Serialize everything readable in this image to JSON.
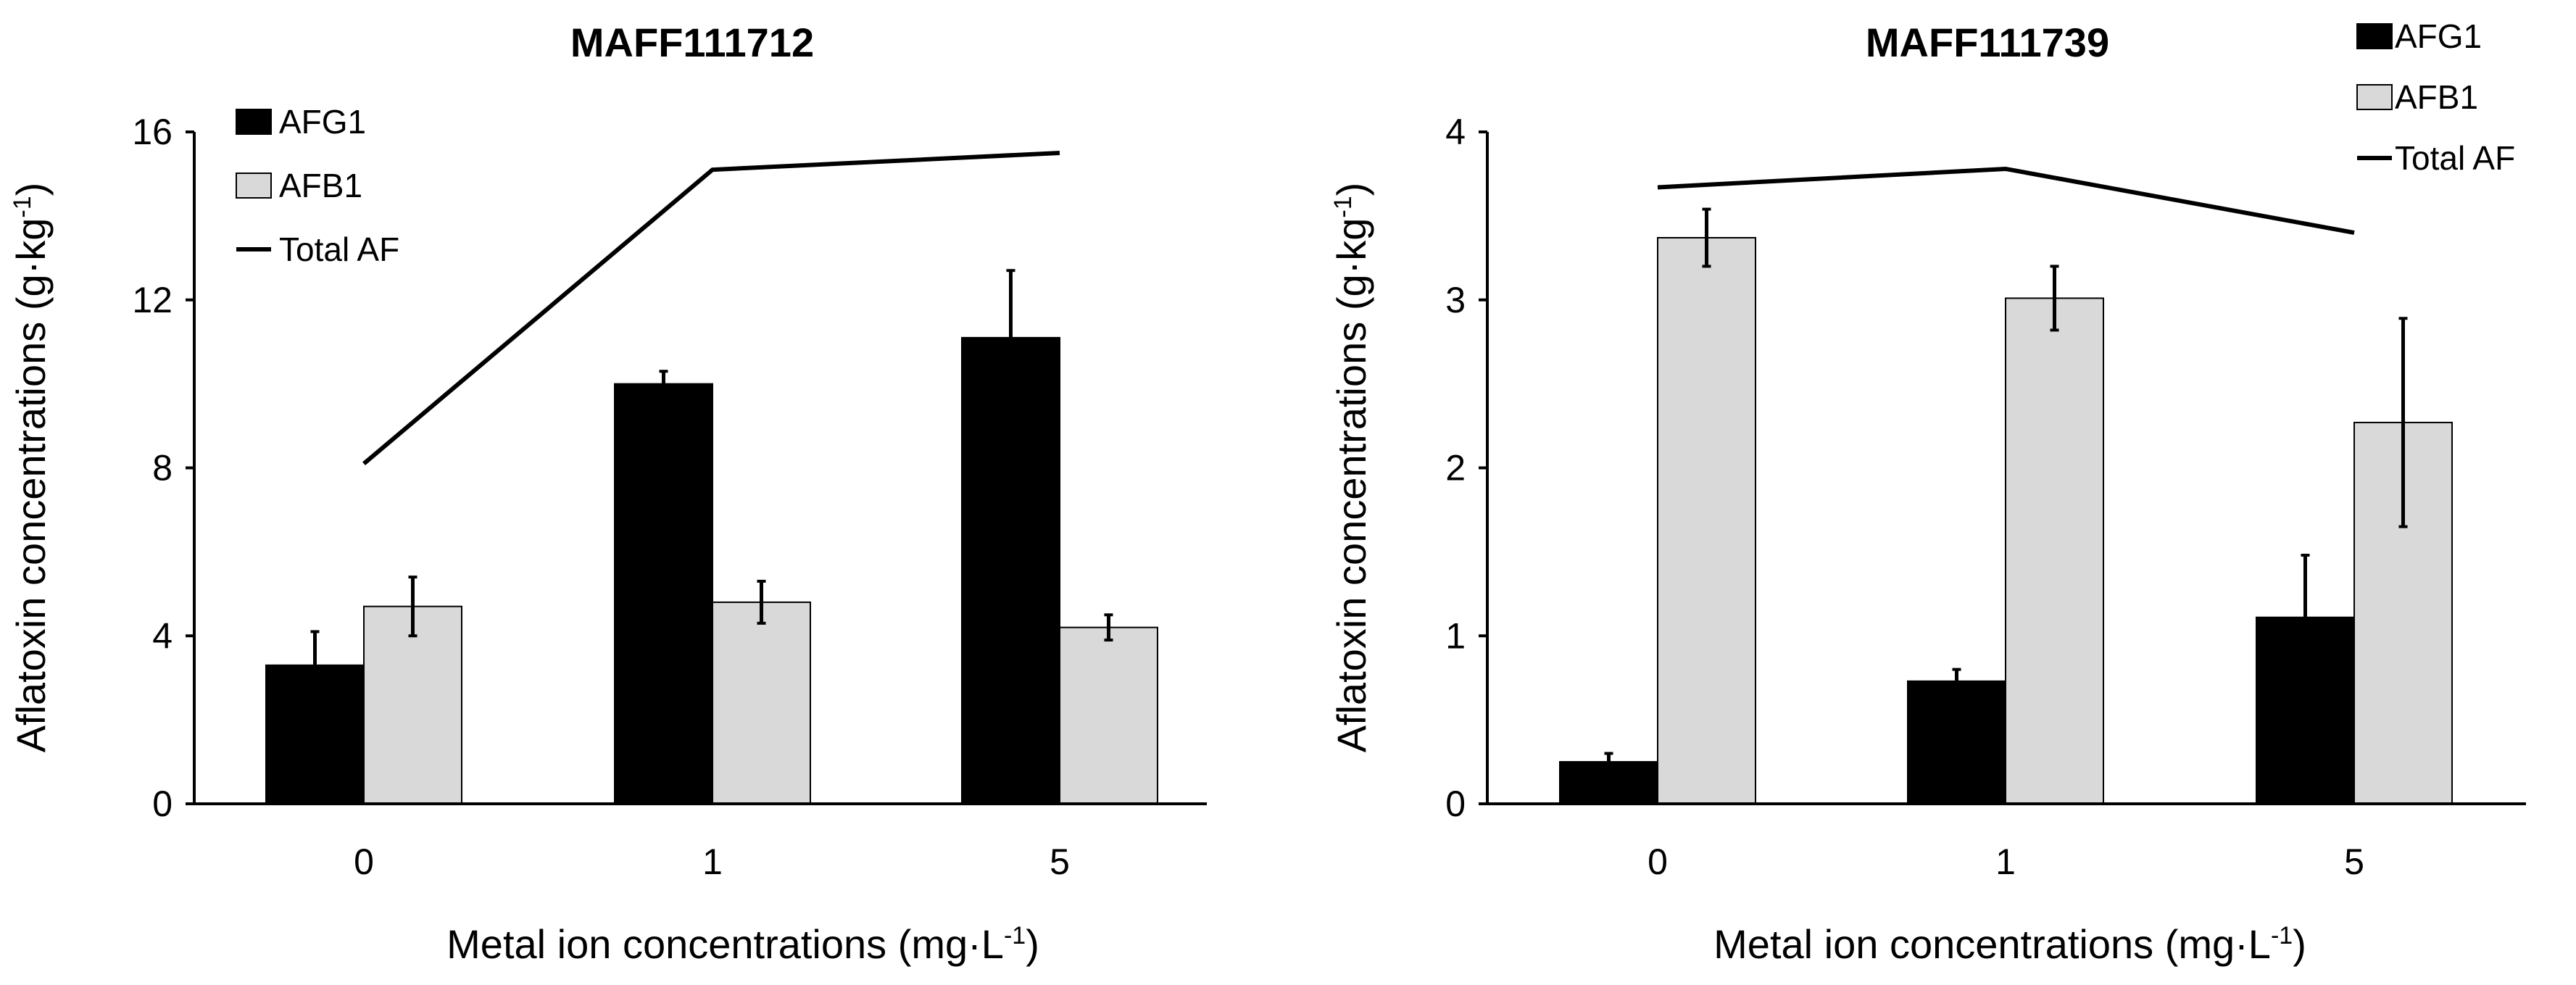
{
  "chart_data": [
    {
      "type": "bar",
      "title": "MAFF111712",
      "categories": [
        "0",
        "1",
        "5"
      ],
      "xlabel": "Metal ion concentrations (mg·L",
      "xlabel_sup": "-1",
      "xlabel_end": ")",
      "ylabel": "Aflatoxin concentrations (g·kg",
      "ylabel_sup": "-1",
      "ylabel_end": ")",
      "ylim": [
        0,
        16
      ],
      "yticks": [
        0,
        4,
        8,
        12,
        16
      ],
      "legend_position": "top-left",
      "series": [
        {
          "name": "AFG1",
          "kind": "bar",
          "color": "#000000",
          "values": [
            3.3,
            10.0,
            11.1
          ],
          "errors": [
            0.8,
            0.3,
            1.6
          ]
        },
        {
          "name": "AFB1",
          "kind": "bar",
          "color": "#d9d9d9",
          "values": [
            4.7,
            4.8,
            4.2
          ],
          "errors": [
            0.7,
            0.5,
            0.3
          ]
        },
        {
          "name": "Total AF",
          "kind": "line",
          "color": "#000000",
          "values": [
            8.1,
            15.1,
            15.5
          ]
        }
      ]
    },
    {
      "type": "bar",
      "title": "MAFF111739",
      "categories": [
        "0",
        "1",
        "5"
      ],
      "xlabel": "Metal ion concentrations (mg·L",
      "xlabel_sup": "-1",
      "xlabel_end": ")",
      "ylabel": "Aflatoxin concentrations (g·kg",
      "ylabel_sup": "-1",
      "ylabel_end": ")",
      "ylim": [
        0,
        4
      ],
      "yticks": [
        0,
        1,
        2,
        3,
        4
      ],
      "legend_position": "top-right",
      "series": [
        {
          "name": "AFG1",
          "kind": "bar",
          "color": "#000000",
          "values": [
            0.25,
            0.73,
            1.11
          ],
          "errors": [
            0.05,
            0.07,
            0.37
          ]
        },
        {
          "name": "AFB1",
          "kind": "bar",
          "color": "#d9d9d9",
          "values": [
            3.37,
            3.01,
            2.27
          ],
          "errors": [
            0.17,
            0.19,
            0.62
          ]
        },
        {
          "name": "Total AF",
          "kind": "line",
          "color": "#000000",
          "values": [
            3.67,
            3.78,
            3.4
          ]
        }
      ]
    }
  ]
}
